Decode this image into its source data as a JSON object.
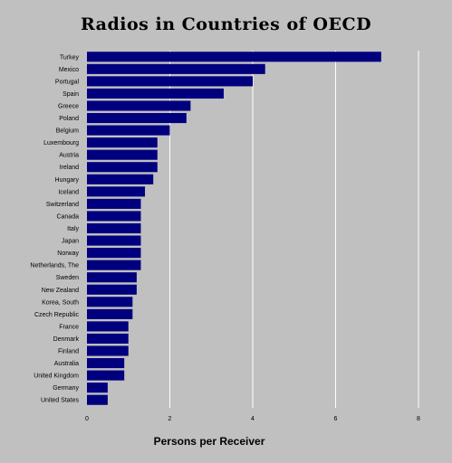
{
  "chart_data": {
    "type": "bar",
    "orientation": "horizontal",
    "title": "Radios in Countries of OECD",
    "xlabel": "Persons per Receiver",
    "ylabel": "",
    "xlim": [
      0,
      8
    ],
    "xticks": [
      0,
      2,
      4,
      6,
      8
    ],
    "grid": true,
    "bar_color": "#00007f",
    "background_color": "#c0c0c0",
    "categories": [
      "Turkey",
      "Mexico",
      "Portugal",
      "Spain",
      "Greece",
      "Poland",
      "Belgium",
      "Luxembourg",
      "Austria",
      "Ireland",
      "Hungary",
      "Iceland",
      "Switzerland",
      "Canada",
      "Italy",
      "Japan",
      "Norway",
      "Netherlands, The",
      "Sweden",
      "New Zealand",
      "Korea, South",
      "Czech Republic",
      "France",
      "Denmark",
      "Finland",
      "Australia",
      "United Kingdom",
      "Germany",
      "United States"
    ],
    "values": [
      7.1,
      4.3,
      4.0,
      3.3,
      2.5,
      2.4,
      2.0,
      1.7,
      1.7,
      1.7,
      1.6,
      1.4,
      1.3,
      1.3,
      1.3,
      1.3,
      1.3,
      1.3,
      1.2,
      1.2,
      1.1,
      1.1,
      1.0,
      1.0,
      1.0,
      0.9,
      0.9,
      0.5,
      0.5
    ]
  }
}
